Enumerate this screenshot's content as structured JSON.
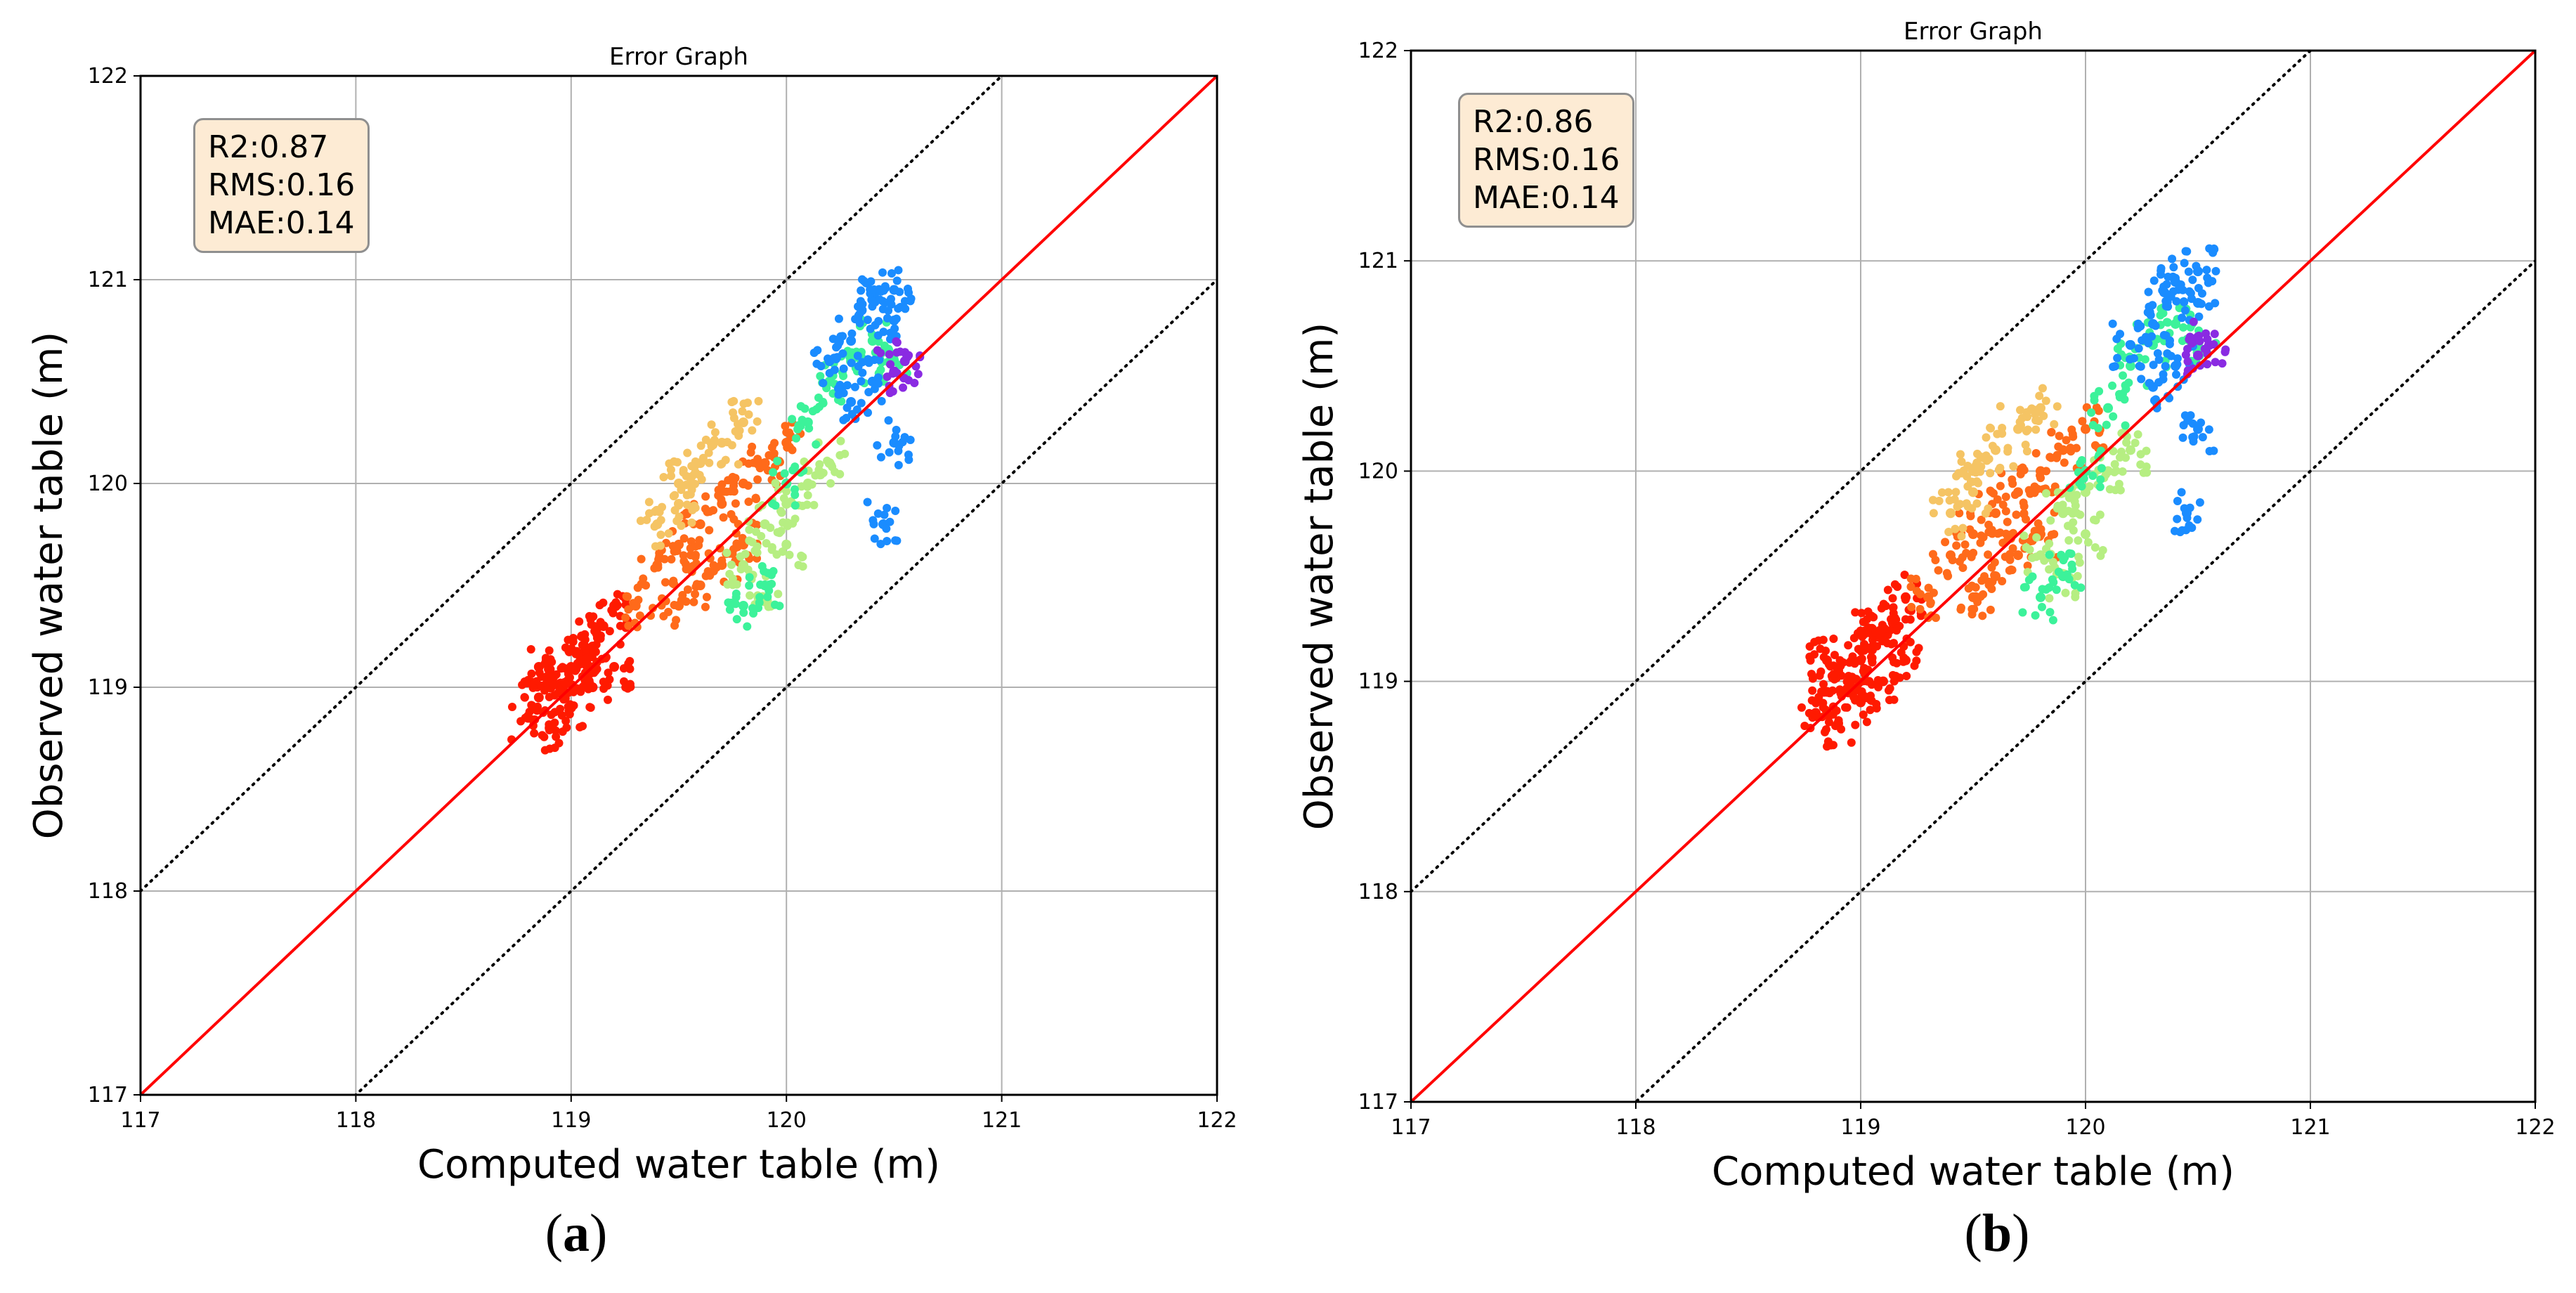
{
  "chart_data": [
    {
      "panel": "a",
      "type": "scatter",
      "title": "Error Graph",
      "xlabel": "Computed water table (m)",
      "ylabel": "Observed water table (m)",
      "xlim": [
        117,
        122
      ],
      "ylim": [
        117,
        122
      ],
      "xticks": [
        "117",
        "118",
        "119",
        "120",
        "121",
        "122"
      ],
      "yticks": [
        "117",
        "118",
        "119",
        "120",
        "121",
        "122"
      ],
      "grid": true,
      "stats": [
        "R2:0.87",
        "RMS:0.16",
        "MAE:0.14"
      ],
      "reference_lines": [
        {
          "name": "1:1 line",
          "offset": 0,
          "color": "#ff0000",
          "style": "solid"
        },
        {
          "name": "+1 m bound",
          "offset": 1,
          "color": "#000000",
          "style": "dotted"
        },
        {
          "name": "-1 m bound",
          "offset": -1,
          "color": "#000000",
          "style": "dotted"
        }
      ],
      "series": [
        {
          "name": "cluster-red",
          "color": "#ff1a00",
          "points": [
            [
              118.8,
              118.85
            ],
            [
              118.85,
              118.95
            ],
            [
              118.9,
              119.05
            ],
            [
              118.95,
              119.0
            ],
            [
              119.0,
              119.1
            ],
            [
              119.05,
              119.15
            ],
            [
              119.1,
              119.2
            ],
            [
              119.15,
              119.3
            ],
            [
              119.2,
              119.4
            ],
            [
              118.85,
              119.1
            ],
            [
              119.0,
              118.9
            ],
            [
              119.1,
              119.0
            ],
            [
              118.9,
              118.8
            ],
            [
              119.2,
              119.1
            ],
            [
              119.05,
              119.25
            ]
          ]
        },
        {
          "name": "cluster-orange",
          "color": "#ff6a1a",
          "points": [
            [
              119.3,
              119.4
            ],
            [
              119.4,
              119.6
            ],
            [
              119.5,
              119.7
            ],
            [
              119.6,
              119.8
            ],
            [
              119.7,
              119.9
            ],
            [
              119.8,
              120.0
            ],
            [
              119.9,
              120.1
            ],
            [
              120.0,
              120.2
            ],
            [
              119.6,
              119.5
            ],
            [
              119.7,
              119.6
            ],
            [
              119.5,
              119.4
            ],
            [
              119.8,
              119.7
            ]
          ]
        },
        {
          "name": "cluster-yellow",
          "color": "#f5c464",
          "points": [
            [
              119.4,
              119.8
            ],
            [
              119.5,
              120.0
            ],
            [
              119.6,
              120.1
            ],
            [
              119.7,
              120.2
            ],
            [
              119.8,
              120.3
            ],
            [
              119.5,
              119.9
            ]
          ]
        },
        {
          "name": "cluster-lightgreen",
          "color": "#b6ee82",
          "points": [
            [
              119.8,
              119.6
            ],
            [
              119.9,
              119.8
            ],
            [
              120.0,
              119.9
            ],
            [
              120.1,
              120.0
            ],
            [
              120.2,
              120.1
            ],
            [
              119.9,
              119.5
            ],
            [
              120.0,
              119.7
            ]
          ]
        },
        {
          "name": "cluster-green",
          "color": "#3cf29a",
          "points": [
            [
              119.8,
              119.4
            ],
            [
              119.9,
              119.5
            ],
            [
              120.0,
              120.0
            ],
            [
              120.1,
              120.3
            ],
            [
              120.2,
              120.5
            ],
            [
              120.3,
              120.6
            ],
            [
              120.4,
              120.7
            ],
            [
              120.5,
              120.6
            ]
          ]
        },
        {
          "name": "cluster-blue",
          "color": "#1a8cff",
          "points": [
            [
              120.2,
              120.6
            ],
            [
              120.3,
              120.7
            ],
            [
              120.4,
              120.9
            ],
            [
              120.5,
              120.95
            ],
            [
              120.5,
              120.8
            ],
            [
              120.4,
              120.5
            ],
            [
              120.5,
              120.2
            ],
            [
              120.45,
              119.8
            ],
            [
              120.3,
              120.4
            ],
            [
              120.35,
              120.85
            ]
          ]
        },
        {
          "name": "cluster-purple",
          "color": "#8a2be2",
          "points": [
            [
              120.5,
              120.55
            ],
            [
              120.55,
              120.6
            ]
          ]
        }
      ]
    },
    {
      "panel": "b",
      "type": "scatter",
      "title": "Error Graph",
      "xlabel": "Computed water table (m)",
      "ylabel": "Observed water table (m)",
      "xlim": [
        117,
        122
      ],
      "ylim": [
        117,
        122
      ],
      "xticks": [
        "117",
        "118",
        "119",
        "120",
        "121",
        "122"
      ],
      "yticks": [
        "117",
        "118",
        "119",
        "120",
        "121",
        "122"
      ],
      "grid": true,
      "stats": [
        "R2:0.86",
        "RMS:0.16",
        "MAE:0.14"
      ],
      "reference_lines": [
        {
          "name": "1:1 line",
          "offset": 0,
          "color": "#ff0000",
          "style": "solid"
        },
        {
          "name": "+1 m bound",
          "offset": 1,
          "color": "#000000",
          "style": "dotted"
        },
        {
          "name": "-1 m bound",
          "offset": -1,
          "color": "#000000",
          "style": "dotted"
        }
      ],
      "series": [
        {
          "name": "cluster-red",
          "color": "#ff1a00",
          "points": [
            [
              118.8,
              118.85
            ],
            [
              118.85,
              118.95
            ],
            [
              118.9,
              119.05
            ],
            [
              118.95,
              119.0
            ],
            [
              119.0,
              119.1
            ],
            [
              119.05,
              119.15
            ],
            [
              119.1,
              119.2
            ],
            [
              119.15,
              119.3
            ],
            [
              119.2,
              119.4
            ],
            [
              118.85,
              119.1
            ],
            [
              119.0,
              118.9
            ],
            [
              119.1,
              119.0
            ],
            [
              118.9,
              118.8
            ],
            [
              119.2,
              119.1
            ],
            [
              119.05,
              119.25
            ]
          ]
        },
        {
          "name": "cluster-orange",
          "color": "#ff6a1a",
          "points": [
            [
              119.3,
              119.4
            ],
            [
              119.4,
              119.6
            ],
            [
              119.5,
              119.7
            ],
            [
              119.6,
              119.8
            ],
            [
              119.7,
              119.9
            ],
            [
              119.8,
              120.0
            ],
            [
              119.9,
              120.1
            ],
            [
              120.0,
              120.2
            ],
            [
              119.6,
              119.5
            ],
            [
              119.7,
              119.6
            ],
            [
              119.5,
              119.4
            ],
            [
              119.8,
              119.7
            ]
          ]
        },
        {
          "name": "cluster-yellow",
          "color": "#f5c464",
          "points": [
            [
              119.4,
              119.8
            ],
            [
              119.5,
              120.0
            ],
            [
              119.6,
              120.1
            ],
            [
              119.7,
              120.2
            ],
            [
              119.8,
              120.3
            ],
            [
              119.5,
              119.9
            ]
          ]
        },
        {
          "name": "cluster-lightgreen",
          "color": "#b6ee82",
          "points": [
            [
              119.8,
              119.6
            ],
            [
              119.9,
              119.8
            ],
            [
              120.0,
              119.9
            ],
            [
              120.1,
              120.0
            ],
            [
              120.2,
              120.1
            ],
            [
              119.9,
              119.5
            ],
            [
              120.0,
              119.7
            ]
          ]
        },
        {
          "name": "cluster-green",
          "color": "#3cf29a",
          "points": [
            [
              119.8,
              119.4
            ],
            [
              119.9,
              119.5
            ],
            [
              120.0,
              120.0
            ],
            [
              120.1,
              120.3
            ],
            [
              120.2,
              120.5
            ],
            [
              120.3,
              120.6
            ],
            [
              120.4,
              120.7
            ],
            [
              120.5,
              120.6
            ]
          ]
        },
        {
          "name": "cluster-blue",
          "color": "#1a8cff",
          "points": [
            [
              120.2,
              120.6
            ],
            [
              120.3,
              120.7
            ],
            [
              120.4,
              120.9
            ],
            [
              120.5,
              120.95
            ],
            [
              120.5,
              120.8
            ],
            [
              120.4,
              120.5
            ],
            [
              120.5,
              120.2
            ],
            [
              120.45,
              119.8
            ],
            [
              120.3,
              120.4
            ],
            [
              120.35,
              120.85
            ]
          ]
        },
        {
          "name": "cluster-purple",
          "color": "#8a2be2",
          "points": [
            [
              120.5,
              120.55
            ],
            [
              120.55,
              120.6
            ]
          ]
        }
      ]
    }
  ],
  "panel_labels": {
    "a": {
      "open": "(",
      "letter": "a",
      "close": ")"
    },
    "b": {
      "open": "(",
      "letter": "b",
      "close": ")"
    }
  }
}
